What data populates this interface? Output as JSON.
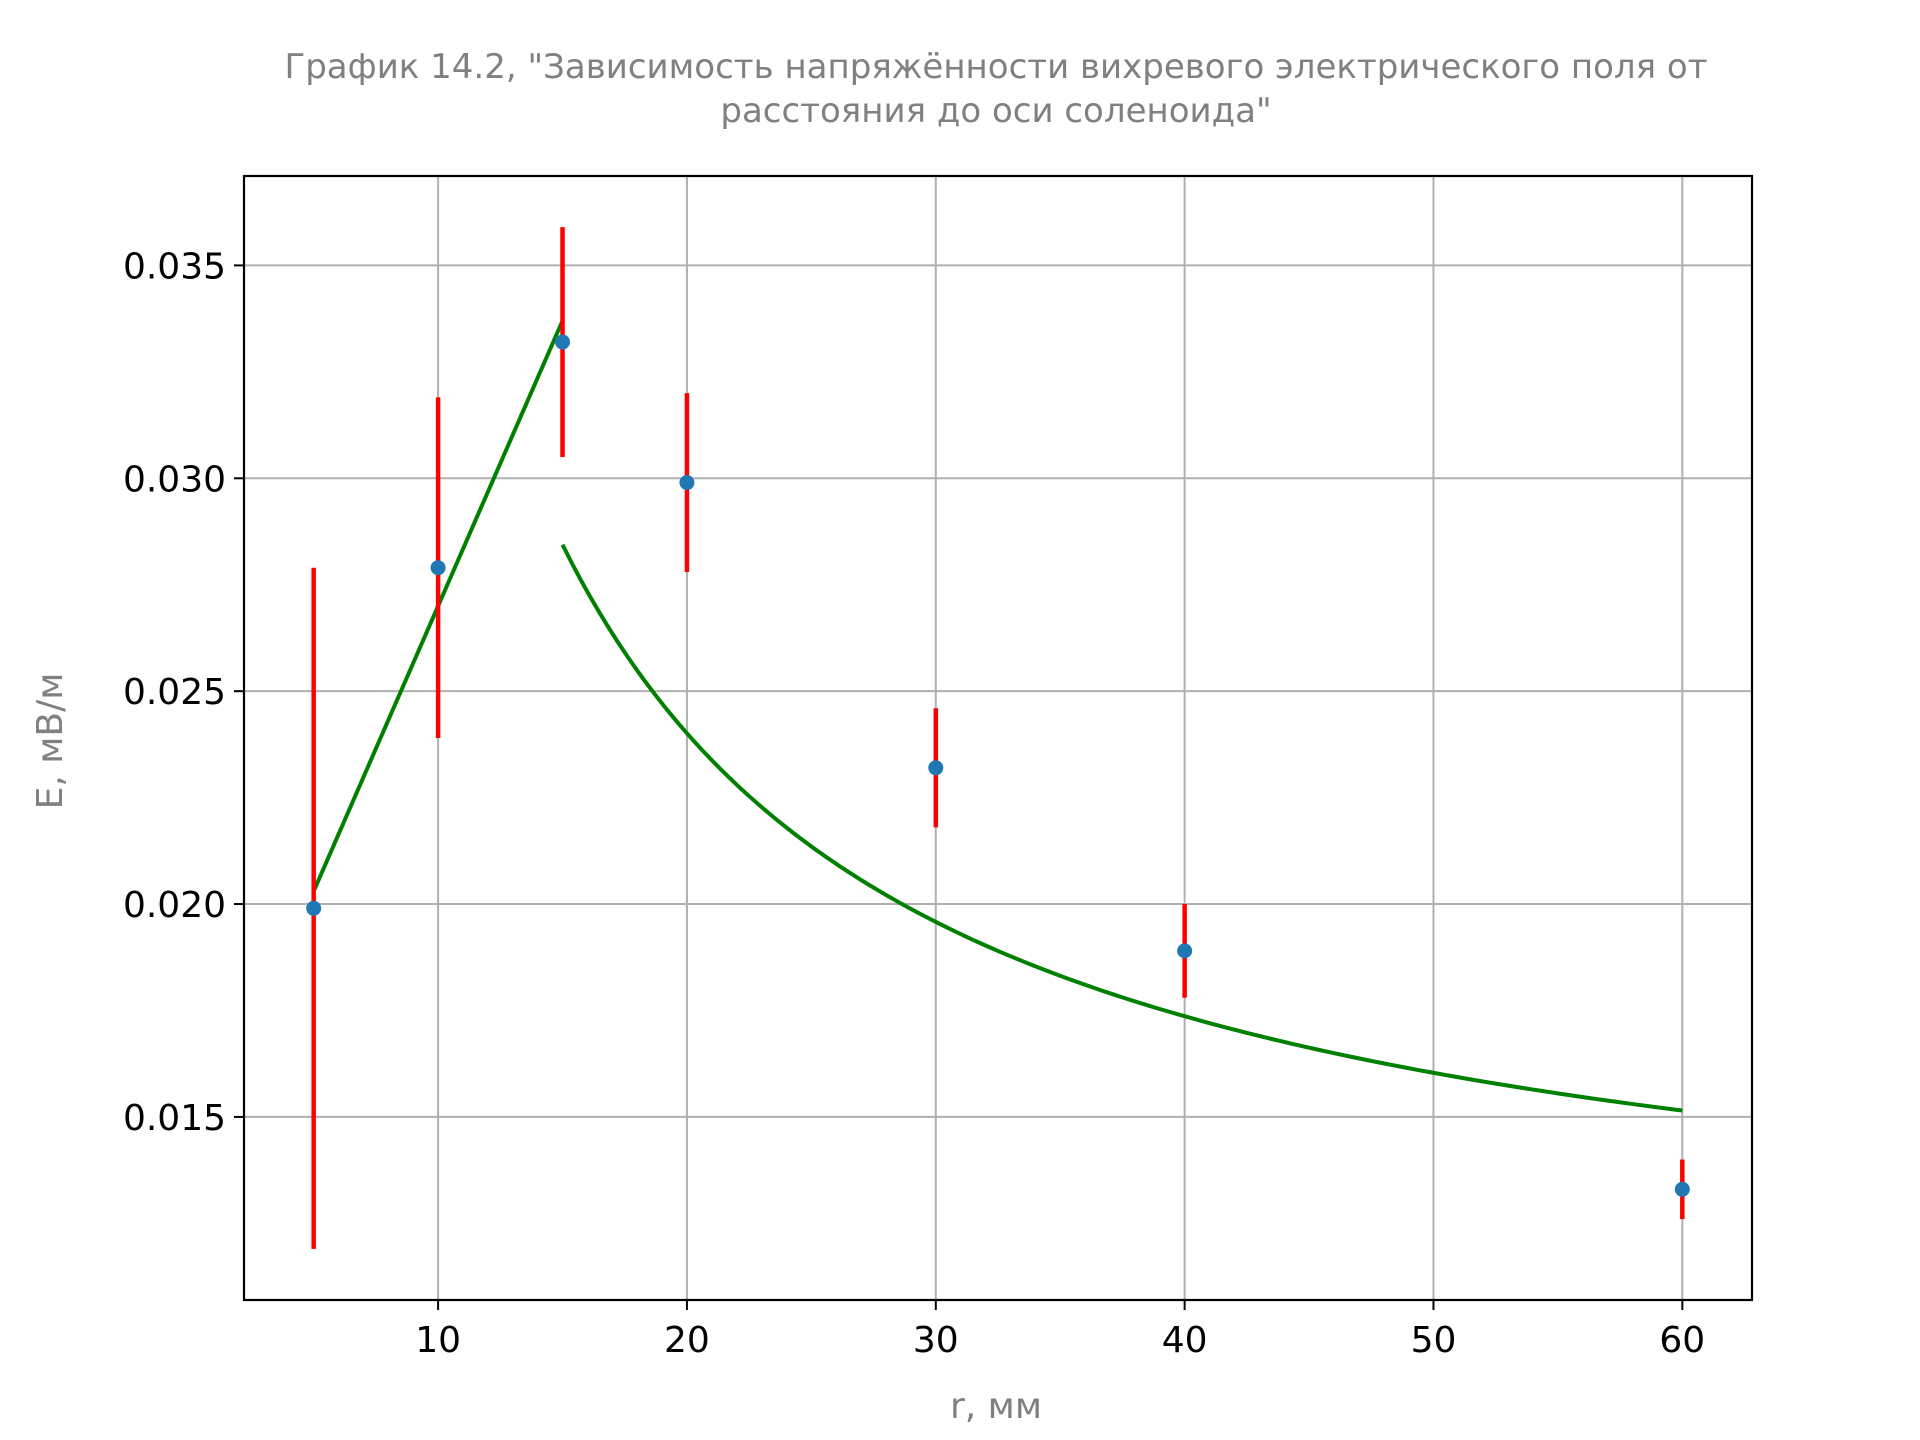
{
  "chart_data": {
    "type": "scatter",
    "title_lines": [
      "График 14.2, \"Зависимость напряжённости вихревого электрического поля от",
      "расстояния до оси соленоида\""
    ],
    "xlabel": "r, мм",
    "ylabel": "E, мВ/м",
    "xlim": [
      2.2,
      62.8
    ],
    "ylim": [
      0.0107,
      0.0371
    ],
    "x_ticks": [
      10,
      20,
      30,
      40,
      50,
      60
    ],
    "x_tick_labels": [
      "10",
      "20",
      "30",
      "40",
      "50",
      "60"
    ],
    "y_ticks": [
      0.015,
      0.02,
      0.025,
      0.03,
      0.035
    ],
    "y_tick_labels": [
      "0.015",
      "0.020",
      "0.025",
      "0.030",
      "0.035"
    ],
    "grid": true,
    "series": [
      {
        "kind": "points_with_errorbars",
        "color": "#1f77b4",
        "error_color": "#ff0000",
        "points": [
          {
            "x": 5,
            "y": 0.0199,
            "yerr": 0.008
          },
          {
            "x": 10,
            "y": 0.0279,
            "yerr": 0.004
          },
          {
            "x": 15,
            "y": 0.0332,
            "yerr": 0.0027
          },
          {
            "x": 20,
            "y": 0.0299,
            "yerr": 0.0021
          },
          {
            "x": 30,
            "y": 0.0232,
            "yerr": 0.0014
          },
          {
            "x": 40,
            "y": 0.0189,
            "yerr": 0.0011
          },
          {
            "x": 60,
            "y": 0.0133,
            "yerr": 0.0007
          }
        ]
      },
      {
        "kind": "fit_line",
        "color": "#008000",
        "segments": [
          {
            "model": "linear",
            "x_from": 5,
            "x_to": 15,
            "y_from": 0.0203,
            "y_to": 0.0337
          },
          {
            "model": "a_over_x_plus_b",
            "x_from": 15,
            "x_to": 60,
            "a": 0.2658,
            "b": 0.01072
          }
        ]
      }
    ]
  }
}
